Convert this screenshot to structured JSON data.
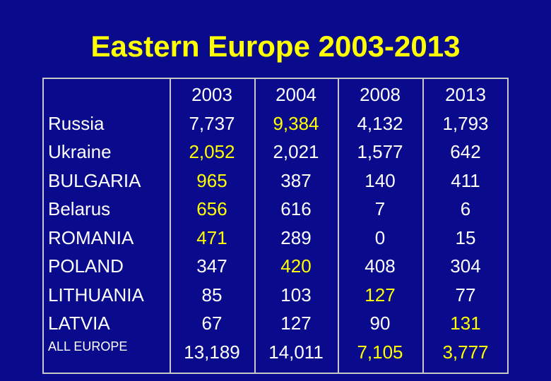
{
  "title": "Eastern Europe 2003-2013",
  "colors": {
    "background": "#0a0a8c",
    "highlight": "#ffff00",
    "text": "#ffffff",
    "grid": "#c8c8c8"
  },
  "table": {
    "years": [
      "2003",
      "2004",
      "2008",
      "2013"
    ],
    "rows": [
      {
        "name": "Russia",
        "values": [
          "7,737",
          "9,384",
          "4,132",
          "1,793"
        ],
        "highlight": [
          false,
          true,
          false,
          false
        ]
      },
      {
        "name": "Ukraine",
        "values": [
          "2,052",
          "2,021",
          "1,577",
          "642"
        ],
        "highlight": [
          true,
          false,
          false,
          false
        ]
      },
      {
        "name": "BULGARIA",
        "values": [
          "965",
          "387",
          "140",
          "411"
        ],
        "highlight": [
          true,
          false,
          false,
          false
        ]
      },
      {
        "name": "Belarus",
        "values": [
          "656",
          "616",
          "7",
          "6"
        ],
        "highlight": [
          true,
          false,
          false,
          false
        ]
      },
      {
        "name": "ROMANIA",
        "values": [
          "471",
          "289",
          "0",
          "15"
        ],
        "highlight": [
          true,
          false,
          false,
          false
        ]
      },
      {
        "name": "POLAND",
        "values": [
          "347",
          "420",
          "408",
          "304"
        ],
        "highlight": [
          false,
          true,
          false,
          false
        ]
      },
      {
        "name": "LITHUANIA",
        "values": [
          "85",
          "103",
          "127",
          "77"
        ],
        "highlight": [
          false,
          false,
          true,
          false
        ]
      },
      {
        "name": "LATVIA",
        "values": [
          "67",
          "127",
          "90",
          "131"
        ],
        "highlight": [
          false,
          false,
          false,
          true
        ]
      }
    ],
    "total": {
      "name": "ALL  EUROPE",
      "values": [
        "13,189",
        "14,011",
        "7,105",
        "3,777"
      ],
      "highlight": [
        false,
        false,
        true,
        true
      ]
    }
  }
}
